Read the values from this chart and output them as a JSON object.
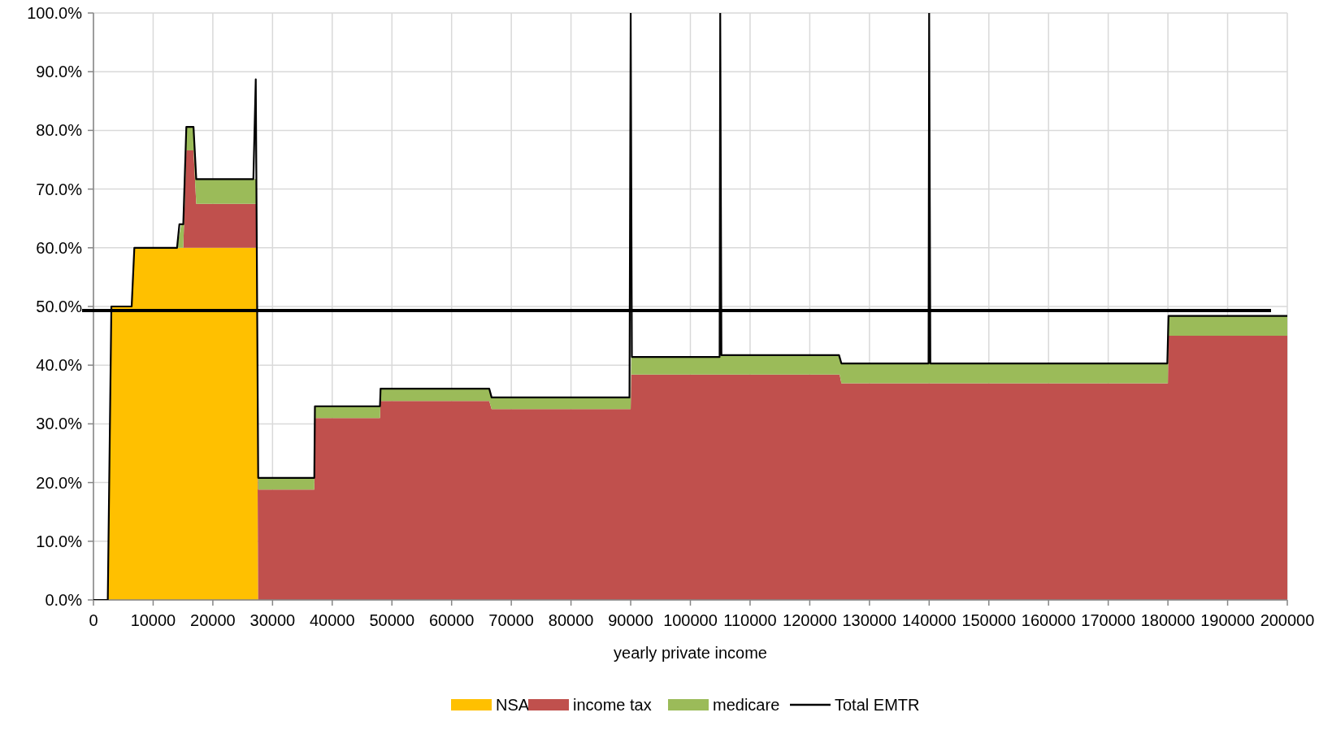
{
  "chart_data": {
    "type": "area",
    "stacked": true,
    "xlabel": "yearly private income",
    "x": [
      0,
      2400,
      3000,
      6400,
      6850,
      14000,
      14700,
      15050,
      15560,
      16760,
      17220,
      27300,
      27600,
      37000,
      37100,
      48000,
      48100,
      66300,
      66700,
      90000,
      90100,
      105000,
      105100,
      125000,
      125300,
      180000,
      180100,
      200000
    ],
    "series": [
      {
        "name": "NSA",
        "color": "#ffc000",
        "values": [
          0,
          0,
          50,
          50,
          60,
          60,
          60,
          60,
          60,
          60,
          60,
          60,
          0,
          0,
          0,
          0,
          0,
          0,
          0,
          0,
          0,
          0,
          0,
          0,
          0,
          0,
          0,
          0
        ]
      },
      {
        "name": "income tax",
        "color": "#c0504d",
        "values": [
          0,
          0,
          0,
          0,
          0,
          0,
          0,
          0,
          16.6,
          16.6,
          7.5,
          7.5,
          18.8,
          18.8,
          31.0,
          31.0,
          33.9,
          33.9,
          32.5,
          32.5,
          38.4,
          38.4,
          38.4,
          38.4,
          36.9,
          36.9,
          45.0,
          45.0
        ]
      },
      {
        "name": "medicare",
        "color": "#9bbb59",
        "values": [
          0,
          0,
          0,
          0,
          0,
          0,
          4,
          4,
          4,
          4,
          4.2,
          4.2,
          2.0,
          2.0,
          2.0,
          2.0,
          2.1,
          2.1,
          2.0,
          2.0,
          3.0,
          3.0,
          3.3,
          3.3,
          3.4,
          3.4,
          3.4,
          3.4
        ]
      },
      {
        "name": "Total EMTR",
        "type": "line",
        "color": "#000000",
        "x": [
          0,
          2400,
          3000,
          6400,
          6850,
          14000,
          14400,
          15050,
          15560,
          16760,
          17220,
          26790,
          27190,
          27600,
          37000,
          37100,
          48000,
          48100,
          66300,
          66700,
          89800,
          90000,
          90200,
          104900,
          105000,
          105200,
          124900,
          125300,
          139900,
          140000,
          140200,
          179900,
          180100,
          200000
        ],
        "values": [
          0,
          0,
          50,
          50,
          60,
          60,
          64,
          64,
          80.6,
          80.6,
          71.7,
          71.7,
          88.7,
          20.8,
          20.8,
          33.0,
          33.0,
          36.0,
          36.0,
          34.5,
          34.5,
          100,
          41.4,
          41.4,
          100,
          41.7,
          41.7,
          40.3,
          40.3,
          100,
          40.3,
          40.3,
          48.4,
          48.4
        ]
      }
    ],
    "xlim": [
      0,
      200000
    ],
    "xticks": [
      0,
      10000,
      20000,
      30000,
      40000,
      50000,
      60000,
      70000,
      80000,
      90000,
      100000,
      110000,
      120000,
      130000,
      140000,
      150000,
      160000,
      170000,
      180000,
      190000,
      200000
    ],
    "ylim": [
      0,
      100
    ],
    "yticks": [
      {
        "value": 0,
        "label": "0.0%"
      },
      {
        "value": 10,
        "label": "10.0%"
      },
      {
        "value": 20,
        "label": "20.0%"
      },
      {
        "value": 30,
        "label": "30.0%"
      },
      {
        "value": 40,
        "label": "40.0%"
      },
      {
        "value": 50,
        "label": "50.0%"
      },
      {
        "value": 60,
        "label": "60.0%"
      },
      {
        "value": 70,
        "label": "70.0%"
      },
      {
        "value": 80,
        "label": "80.0%"
      },
      {
        "value": 90,
        "label": "90.0%"
      },
      {
        "value": 100,
        "label": "100.0%"
      }
    ],
    "ref_lines": [
      {
        "axis": "y",
        "value": 49.3,
        "color": "#000000"
      }
    ],
    "grid": true,
    "legend": "bottom"
  }
}
